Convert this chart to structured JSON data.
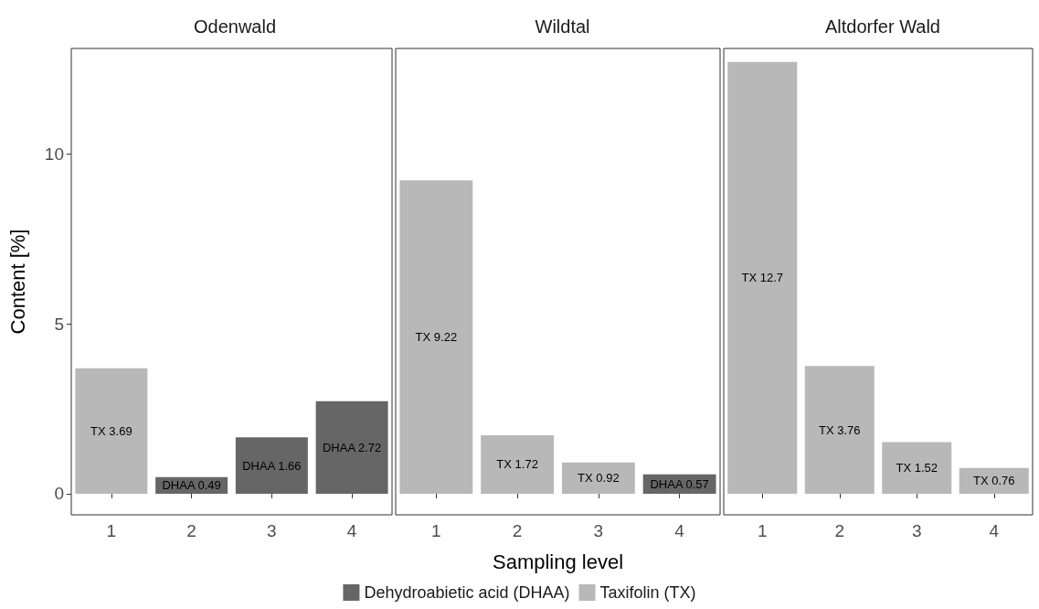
{
  "chart_data": [
    {
      "type": "bar",
      "title": "Odenwald",
      "ylabel": "Content [%]",
      "categories": [
        "1",
        "2",
        "3",
        "4"
      ],
      "ylim": [
        -0.62,
        13.1
      ],
      "yticks": [
        0,
        5,
        10
      ],
      "grid": false,
      "legend": false,
      "series": [
        {
          "color": "#666666",
          "values": [
            null,
            0.49,
            1.66,
            2.72
          ],
          "value_labels": [
            null,
            "DHAA 0.49",
            "DHAA 1.66",
            "DHAA 2.72"
          ]
        },
        {
          "color": "#b8b8b8",
          "values": [
            3.69,
            null,
            null,
            null
          ],
          "value_labels": [
            "TX 3.69",
            null,
            null,
            null
          ]
        }
      ]
    },
    {
      "type": "bar",
      "title": "Wildtal",
      "xlabel": "Sampling level",
      "categories": [
        "1",
        "2",
        "3",
        "4"
      ],
      "ylim": [
        -0.62,
        13.1
      ],
      "yticks": [
        0,
        5,
        10
      ],
      "grid": false,
      "legend": "bottom",
      "tick_labels": "x",
      "series": [
        {
          "name": "Dehydroabietic acid (DHAA)",
          "color": "#666666",
          "values": [
            null,
            null,
            null,
            0.57
          ],
          "value_labels": [
            null,
            null,
            null,
            "DHAA 0.57"
          ]
        },
        {
          "name": "Taxifolin (TX)",
          "color": "#b8b8b8",
          "values": [
            9.22,
            1.72,
            0.92,
            null
          ],
          "value_labels": [
            "TX 9.22",
            "TX 1.72",
            "TX 0.92",
            null
          ]
        }
      ]
    },
    {
      "type": "bar",
      "title": "Altdorfer Wald",
      "categories": [
        "1",
        "2",
        "3",
        "4"
      ],
      "ylim": [
        -0.62,
        13.1
      ],
      "yticks": [
        0,
        5,
        10
      ],
      "grid": false,
      "legend": false,
      "tick_labels": "x",
      "series": [
        {
          "color": "#b8b8b8",
          "values": [
            12.7,
            3.76,
            1.52,
            0.76
          ],
          "value_labels": [
            "TX 12.7",
            "TX 3.76",
            "TX 1.52",
            "TX 0.76"
          ]
        }
      ]
    }
  ]
}
